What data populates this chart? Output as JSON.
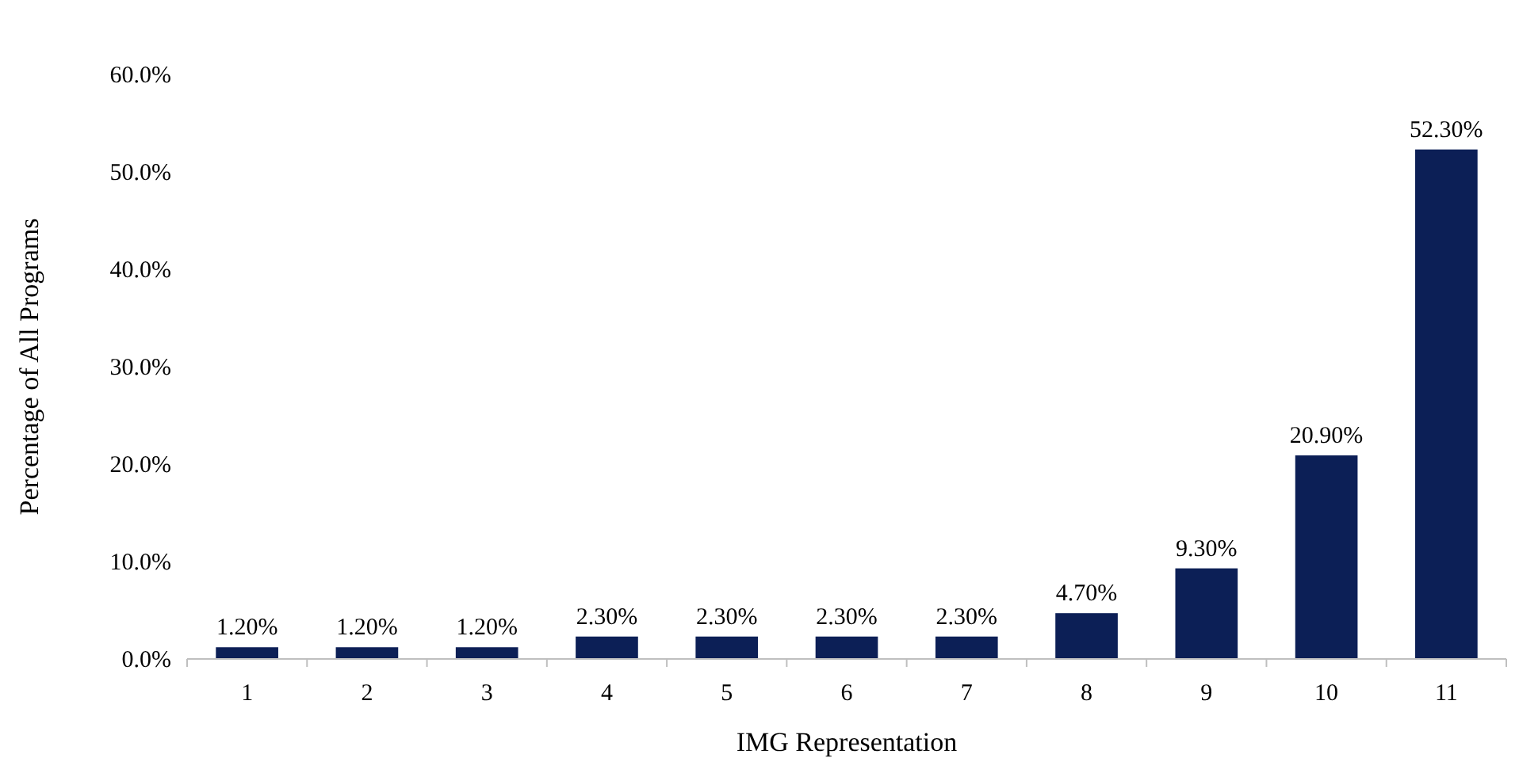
{
  "chart_data": {
    "type": "bar",
    "xlabel": "IMG Representation",
    "ylabel": "Percentage of All Programs",
    "categories": [
      "1",
      "2",
      "3",
      "4",
      "5",
      "6",
      "7",
      "8",
      "9",
      "10",
      "11"
    ],
    "values": [
      1.2,
      1.2,
      1.2,
      2.3,
      2.3,
      2.3,
      2.3,
      4.7,
      9.3,
      20.9,
      52.3
    ],
    "value_labels": [
      "1.20%",
      "1.20%",
      "1.20%",
      "2.30%",
      "2.30%",
      "2.30%",
      "2.30%",
      "4.70%",
      "9.30%",
      "20.90%",
      "52.30%"
    ],
    "color": "#0c1f56",
    "ylim": [
      0,
      60
    ],
    "yticks": [
      {
        "value": 0,
        "label": "0.0%"
      },
      {
        "value": 10,
        "label": "10.0%"
      },
      {
        "value": 20,
        "label": "20.0%"
      },
      {
        "value": 30,
        "label": "30.0%"
      },
      {
        "value": 40,
        "label": "40.0%"
      },
      {
        "value": 50,
        "label": "50.0%"
      },
      {
        "value": 60,
        "label": "60.0%"
      }
    ],
    "grid": false
  }
}
